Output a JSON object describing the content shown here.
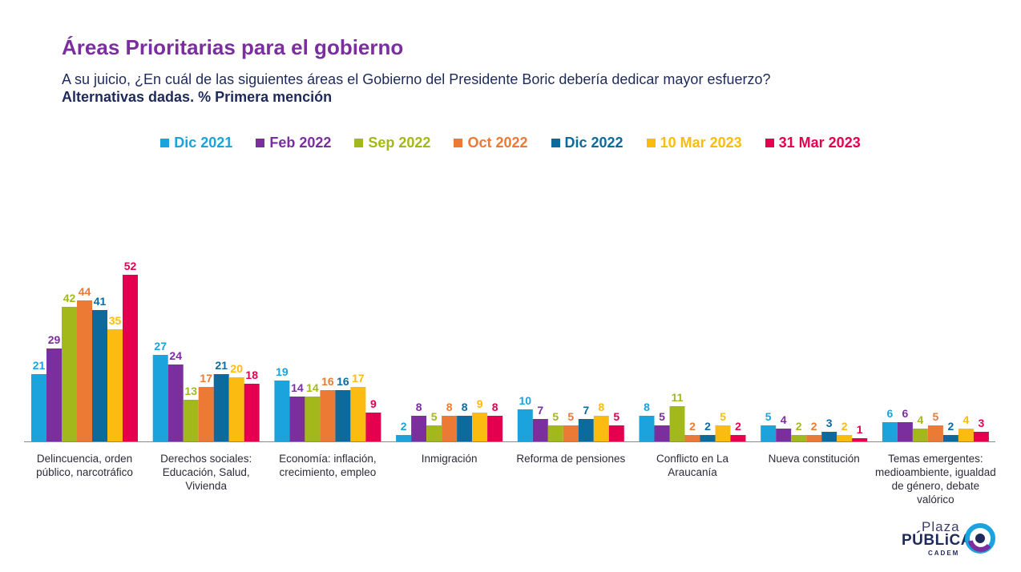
{
  "header": {
    "title": "Áreas Prioritarias para el gobierno",
    "subtitle": "A su juicio, ¿En cuál de las siguientes áreas el Gobierno del Presidente Boric debería dedicar mayor esfuerzo?",
    "subtitle_bold": "Alternativas dadas. % Primera mención"
  },
  "logo": {
    "plaza": "Plaza",
    "publica": "PÚBLiCA",
    "cadem": "CADEM"
  },
  "chart_data": {
    "type": "bar",
    "categories": [
      "Delincuencia, orden público, narcotráfico",
      "Derechos sociales: Educación, Salud, Vivienda",
      "Economía: inflación, crecimiento, empleo",
      "Inmigración",
      "Reforma de pensiones",
      "Conflicto en La Araucanía",
      "Nueva constitución",
      "Temas emergentes: medioambiente, igualdad de género, debate valórico"
    ],
    "series": [
      {
        "name": "Dic 2021",
        "color": "#1aa3dc",
        "values": [
          21,
          27,
          19,
          2,
          10,
          8,
          5,
          6
        ]
      },
      {
        "name": "Feb 2022",
        "color": "#7b2e9e",
        "values": [
          29,
          24,
          14,
          8,
          7,
          5,
          4,
          6
        ]
      },
      {
        "name": "Sep 2022",
        "color": "#a3b81a",
        "values": [
          42,
          13,
          14,
          5,
          5,
          11,
          2,
          4
        ]
      },
      {
        "name": "Oct 2022",
        "color": "#ec7a34",
        "values": [
          44,
          17,
          16,
          8,
          5,
          2,
          2,
          5
        ]
      },
      {
        "name": "Dic 2022",
        "color": "#0c6a9c",
        "values": [
          41,
          21,
          16,
          8,
          7,
          2,
          3,
          2
        ]
      },
      {
        "name": "10 Mar 2023",
        "color": "#fbbb10",
        "values": [
          35,
          20,
          17,
          9,
          8,
          5,
          2,
          4
        ]
      },
      {
        "name": "31 Mar 2023",
        "color": "#e4004f",
        "values": [
          52,
          18,
          9,
          8,
          5,
          2,
          1,
          3
        ]
      }
    ],
    "ylim": [
      0,
      52
    ],
    "grid": false,
    "legend_position": "top"
  }
}
